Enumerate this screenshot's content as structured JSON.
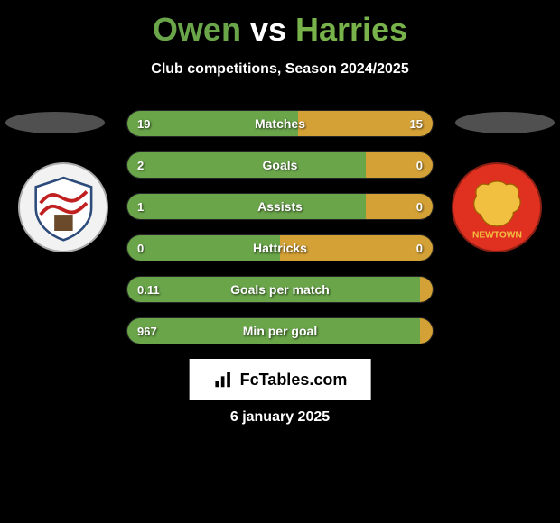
{
  "title": {
    "prefix": "Owen",
    "mid": " vs ",
    "suffix": "Harries",
    "prefix_color": "#6aa54a",
    "suffix_color": "#78b24a"
  },
  "subtitle": "Club competitions, Season 2024/2025",
  "colors": {
    "left": "#6aa54a",
    "right": "#d4a136",
    "bg": "#000000"
  },
  "crests": {
    "left_bg": "#f2f2f2",
    "right_bg": "#e03020"
  },
  "bars": [
    {
      "label": "Matches",
      "left": "19",
      "right": "15",
      "left_pct": 56,
      "right_pct": 44
    },
    {
      "label": "Goals",
      "left": "2",
      "right": "0",
      "left_pct": 78,
      "right_pct": 22
    },
    {
      "label": "Assists",
      "left": "1",
      "right": "0",
      "left_pct": 78,
      "right_pct": 22
    },
    {
      "label": "Hattricks",
      "left": "0",
      "right": "0",
      "left_pct": 50,
      "right_pct": 50
    },
    {
      "label": "Goals per match",
      "left": "0.11",
      "right": "",
      "left_pct": 96,
      "right_pct": 4
    },
    {
      "label": "Min per goal",
      "left": "967",
      "right": "",
      "left_pct": 96,
      "right_pct": 4
    }
  ],
  "source": "FcTables.com",
  "date": "6 january 2025"
}
